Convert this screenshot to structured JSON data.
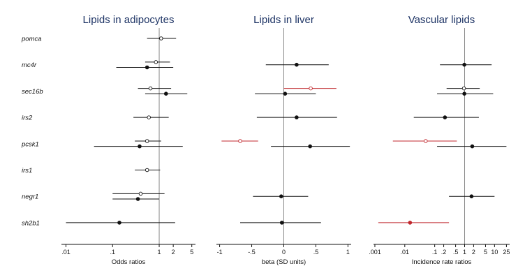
{
  "colors": {
    "title": "#1f3566",
    "black": "#111111",
    "red": "#c0272d",
    "ref_line": "#888888"
  },
  "genes": [
    "pomca",
    "mc4r",
    "sec16b",
    "irs2",
    "pcsk1",
    "irs1",
    "negr1",
    "sh2b1"
  ],
  "chart_data": [
    {
      "type": "forest",
      "title": "Lipids in adipocytes",
      "xlabel": "Odds ratios",
      "scale": "log",
      "xlim": [
        0.008,
        6
      ],
      "ticks": [
        {
          "label": ".01",
          "value": 0.01
        },
        {
          "label": ".1",
          "value": 0.1
        },
        {
          "label": "1",
          "value": 1
        },
        {
          "label": "2",
          "value": 2
        },
        {
          "label": "5",
          "value": 5
        }
      ],
      "reference": 1,
      "series": [
        {
          "gene": "pomca",
          "offset": 0,
          "est": 1.1,
          "lo": 0.55,
          "hi": 2.3,
          "style": "open",
          "color": "black"
        },
        {
          "gene": "mc4r",
          "offset": -1,
          "est": 0.85,
          "lo": 0.5,
          "hi": 1.7,
          "style": "open",
          "color": "black"
        },
        {
          "gene": "mc4r",
          "offset": 1,
          "est": 0.55,
          "lo": 0.12,
          "hi": 2.0,
          "style": "filled",
          "color": "black"
        },
        {
          "gene": "sec16b",
          "offset": -1,
          "est": 0.65,
          "lo": 0.35,
          "hi": 1.8,
          "style": "open",
          "color": "black"
        },
        {
          "gene": "sec16b",
          "offset": 1,
          "est": 1.4,
          "lo": 0.5,
          "hi": 4.0,
          "style": "filled",
          "color": "black"
        },
        {
          "gene": "irs2",
          "offset": 0,
          "est": 0.6,
          "lo": 0.28,
          "hi": 1.6,
          "style": "open",
          "color": "black"
        },
        {
          "gene": "pcsk1",
          "offset": -1,
          "est": 0.55,
          "lo": 0.3,
          "hi": 1.1,
          "style": "open",
          "color": "black"
        },
        {
          "gene": "pcsk1",
          "offset": 1,
          "est": 0.38,
          "lo": 0.04,
          "hi": 3.2,
          "style": "filled",
          "color": "black"
        },
        {
          "gene": "irs1",
          "offset": 0,
          "est": 0.55,
          "lo": 0.3,
          "hi": 1.05,
          "style": "open",
          "color": "black"
        },
        {
          "gene": "negr1",
          "offset": -1,
          "est": 0.4,
          "lo": 0.1,
          "hi": 1.3,
          "style": "open",
          "color": "black"
        },
        {
          "gene": "negr1",
          "offset": 1,
          "est": 0.35,
          "lo": 0.1,
          "hi": 1.0,
          "style": "filled",
          "color": "black"
        },
        {
          "gene": "sh2b1",
          "offset": 0,
          "est": 0.14,
          "lo": 0.01,
          "hi": 2.2,
          "style": "filled",
          "color": "black"
        }
      ]
    },
    {
      "type": "forest",
      "title": "Lipids in liver",
      "xlabel": "beta (SD units)",
      "scale": "linear",
      "xlim": [
        -1.05,
        1.05
      ],
      "ticks": [
        {
          "label": "-1",
          "value": -1
        },
        {
          "label": "-.5",
          "value": -0.5
        },
        {
          "label": "0",
          "value": 0
        },
        {
          "label": ".5",
          "value": 0.5
        },
        {
          "label": "1",
          "value": 1
        }
      ],
      "reference": 0,
      "series": [
        {
          "gene": "mc4r",
          "offset": 0,
          "est": 0.2,
          "lo": -0.28,
          "hi": 0.7,
          "style": "filled",
          "color": "black"
        },
        {
          "gene": "sec16b",
          "offset": -1,
          "est": 0.42,
          "lo": 0.0,
          "hi": 0.82,
          "style": "open",
          "color": "red"
        },
        {
          "gene": "sec16b",
          "offset": 1,
          "est": 0.02,
          "lo": -0.45,
          "hi": 0.5,
          "style": "filled",
          "color": "black"
        },
        {
          "gene": "irs2",
          "offset": 0,
          "est": 0.2,
          "lo": -0.42,
          "hi": 0.83,
          "style": "filled",
          "color": "black"
        },
        {
          "gene": "pcsk1",
          "offset": -1,
          "est": -0.68,
          "lo": -0.97,
          "hi": -0.4,
          "style": "open",
          "color": "red"
        },
        {
          "gene": "pcsk1",
          "offset": 1,
          "est": 0.41,
          "lo": -0.2,
          "hi": 1.03,
          "style": "filled",
          "color": "black"
        },
        {
          "gene": "negr1",
          "offset": 0,
          "est": -0.04,
          "lo": -0.48,
          "hi": 0.38,
          "style": "filled",
          "color": "black"
        },
        {
          "gene": "sh2b1",
          "offset": 0,
          "est": -0.03,
          "lo": -0.68,
          "hi": 0.58,
          "style": "filled",
          "color": "black"
        }
      ]
    },
    {
      "type": "forest",
      "title": "Vascular lipids",
      "xlabel": "Incidence rate ratios",
      "scale": "log",
      "xlim": [
        0.0009,
        32
      ],
      "ticks": [
        {
          "label": ".001",
          "value": 0.001
        },
        {
          "label": ".01",
          "value": 0.01
        },
        {
          "label": ".1",
          "value": 0.1
        },
        {
          "label": ".2",
          "value": 0.2
        },
        {
          "label": ".5",
          "value": 0.5
        },
        {
          "label": "1",
          "value": 1
        },
        {
          "label": "2",
          "value": 2
        },
        {
          "label": "5",
          "value": 5
        },
        {
          "label": "10",
          "value": 10
        },
        {
          "label": "25",
          "value": 25
        }
      ],
      "reference": 1,
      "series": [
        {
          "gene": "mc4r",
          "offset": 0,
          "est": 0.98,
          "lo": 0.15,
          "hi": 8.0,
          "style": "filled",
          "color": "black"
        },
        {
          "gene": "sec16b",
          "offset": -1,
          "est": 0.95,
          "lo": 0.25,
          "hi": 3.2,
          "style": "open",
          "color": "black"
        },
        {
          "gene": "sec16b",
          "offset": 1,
          "est": 0.98,
          "lo": 0.12,
          "hi": 9.0,
          "style": "filled",
          "color": "black"
        },
        {
          "gene": "irs2",
          "offset": 0,
          "est": 0.22,
          "lo": 0.02,
          "hi": 3.0,
          "style": "filled",
          "color": "black"
        },
        {
          "gene": "pcsk1",
          "offset": -1,
          "est": 0.05,
          "lo": 0.004,
          "hi": 0.55,
          "style": "open",
          "color": "red"
        },
        {
          "gene": "pcsk1",
          "offset": 1,
          "est": 1.8,
          "lo": 0.12,
          "hi": 25,
          "style": "filled",
          "color": "black"
        },
        {
          "gene": "negr1",
          "offset": 0,
          "est": 1.7,
          "lo": 0.3,
          "hi": 10,
          "style": "filled",
          "color": "black"
        },
        {
          "gene": "sh2b1",
          "offset": 0,
          "est": 0.015,
          "lo": 0.0013,
          "hi": 0.3,
          "style": "filled",
          "color": "red"
        }
      ]
    }
  ]
}
